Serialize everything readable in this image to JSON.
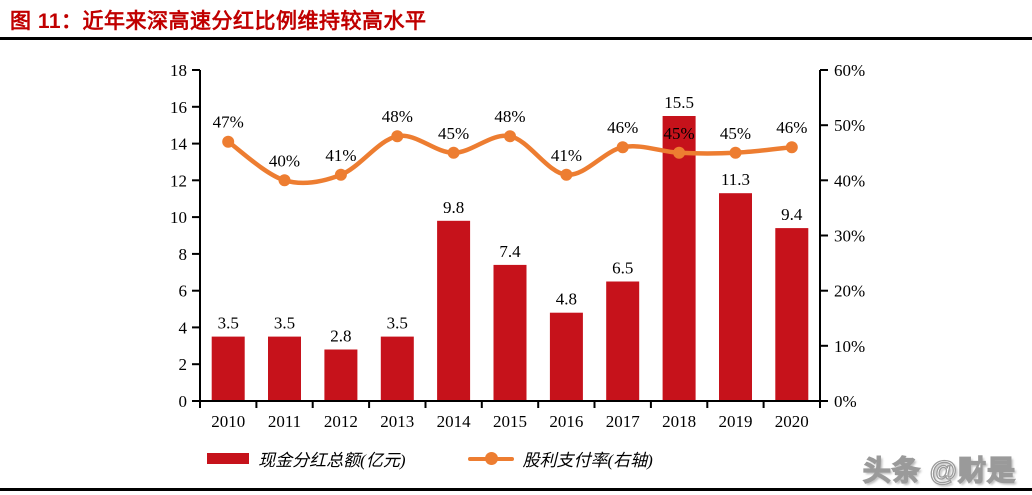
{
  "title": {
    "text": "图 11：近年来深高速分红比例维持较高水平"
  },
  "watermark": {
    "text": "头条 @财是"
  },
  "legend": [
    {
      "label": "现金分红总额(亿元)"
    },
    {
      "label": "股利支付率(右轴)"
    }
  ],
  "colors": {
    "bar": "#C6121B",
    "line": "#ED7D31",
    "title": "#C00000",
    "axis": "#000000",
    "text": "#000000"
  },
  "chart_data": {
    "type": "combo",
    "title": "图 11：近年来深高速分红比例维持较高水平",
    "categories": [
      "2010",
      "2011",
      "2012",
      "2013",
      "2014",
      "2015",
      "2016",
      "2017",
      "2018",
      "2019",
      "2020"
    ],
    "series": [
      {
        "name": "现金分红总额(亿元)",
        "chart": "bar",
        "axis": "left",
        "values": [
          3.5,
          3.5,
          2.8,
          3.5,
          9.8,
          7.4,
          4.8,
          6.5,
          15.5,
          11.3,
          9.4
        ],
        "labels": [
          "3.5",
          "3.5",
          "2.8",
          "3.5",
          "9.8",
          "7.4",
          "4.8",
          "6.5",
          "15.5",
          "11.3",
          "9.4"
        ]
      },
      {
        "name": "股利支付率(右轴)",
        "chart": "line",
        "axis": "right",
        "values": [
          47,
          40,
          41,
          48,
          45,
          48,
          41,
          46,
          45,
          45,
          46
        ],
        "labels": [
          "47%",
          "40%",
          "41%",
          "48%",
          "45%",
          "48%",
          "41%",
          "46%",
          "45%",
          "45%",
          "46%"
        ]
      }
    ],
    "left_axis": {
      "min": 0,
      "max": 18,
      "step": 2,
      "ticks": [
        "0",
        "2",
        "4",
        "6",
        "8",
        "10",
        "12",
        "14",
        "16",
        "18"
      ]
    },
    "right_axis": {
      "min": 0,
      "max": 60,
      "step": 10,
      "ticks": [
        "0%",
        "10%",
        "20%",
        "30%",
        "40%",
        "50%",
        "60%"
      ]
    },
    "grid": false,
    "legend_position": "bottom"
  }
}
